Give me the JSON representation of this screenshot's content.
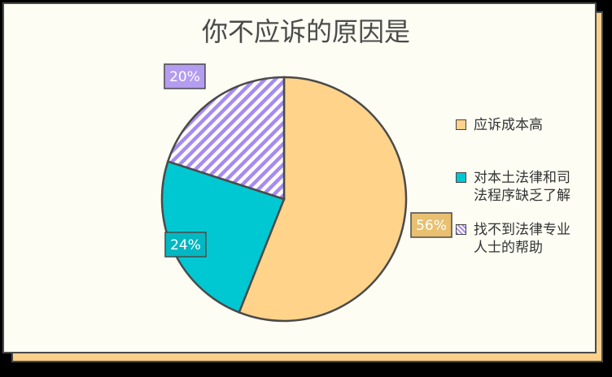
{
  "chart_data": {
    "type": "pie",
    "title": "你不应诉的原因是",
    "slices": [
      {
        "name": "应诉成本高",
        "value": 56,
        "label": "56%",
        "color": "#ffd38a",
        "pattern": "solid"
      },
      {
        "name": "对本土法律和司法程序缺乏了解",
        "value": 24,
        "label": "24%",
        "color": "#00c8d2",
        "pattern": "solid"
      },
      {
        "name": "找不到法律专业人士的帮助",
        "value": 20,
        "label": "20%",
        "color": "#a78bf0",
        "pattern": "diagonal-stripes"
      }
    ],
    "legend_position": "right"
  },
  "legend": {
    "items": [
      {
        "text": "应诉成本高"
      },
      {
        "text": "对本土法律和司法程序缺乏了解"
      },
      {
        "text": "找不到法律专业人士的帮助"
      }
    ]
  }
}
